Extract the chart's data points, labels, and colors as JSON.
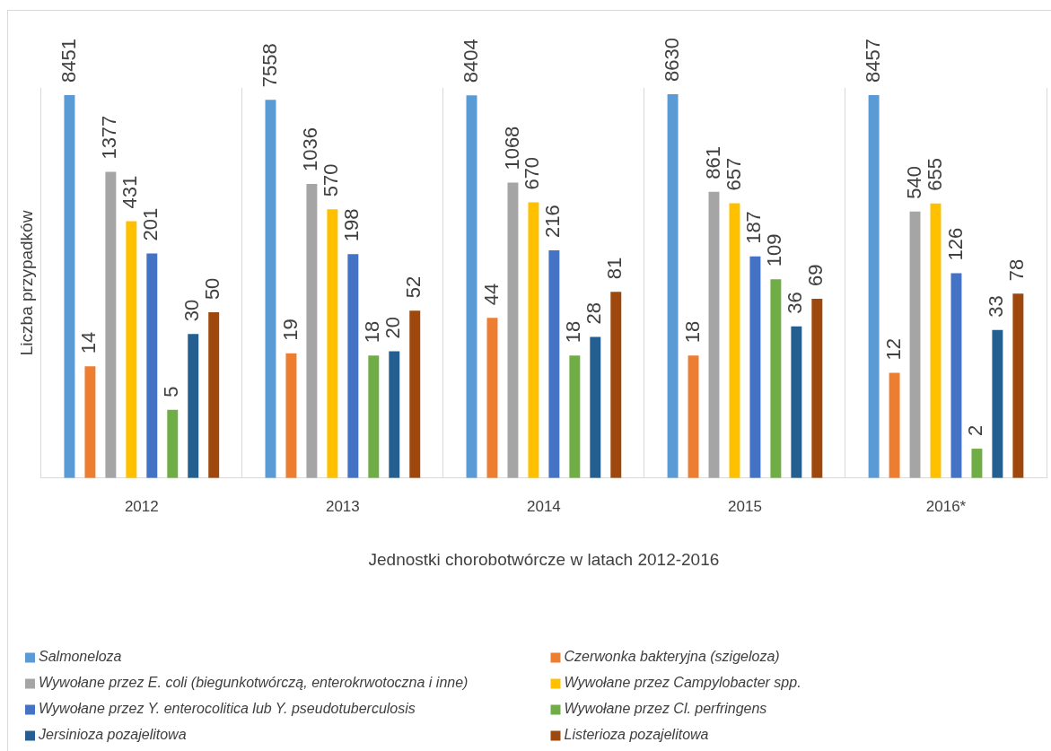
{
  "chart_data": {
    "type": "bar",
    "xlabel": "Jednostki chorobotwórcze w latach 2012-2016",
    "ylabel": "Liczba przypadków",
    "categories": [
      "2012",
      "2013",
      "2014",
      "2015",
      "2016*"
    ],
    "series": [
      {
        "name": "Salmoneloza",
        "color": "#5b9bd5",
        "values": [
          8451,
          7558,
          8404,
          8630,
          8457
        ]
      },
      {
        "name": "Czerwonka bakteryjna (szigeloza)",
        "color": "#ed7d31",
        "values": [
          14,
          19,
          44,
          18,
          12
        ]
      },
      {
        "name": "Wywołane przez E. coli (biegunkotwórczą, enterokrwotoczna i inne)",
        "color": "#a5a5a5",
        "values": [
          1377,
          1036,
          1068,
          861,
          540
        ]
      },
      {
        "name": "Wywołane przez Campylobacter spp.",
        "color": "#ffc000",
        "values": [
          431,
          570,
          670,
          657,
          655
        ]
      },
      {
        "name": "Wywołane przez Y. enterocolitica lub Y. pseudotuberculosis",
        "color": "#4472c4",
        "values": [
          201,
          198,
          216,
          187,
          126
        ]
      },
      {
        "name": "Wywołane przez Cl. perfringens",
        "color": "#70ad47",
        "values": [
          5,
          18,
          18,
          109,
          2
        ]
      },
      {
        "name": "Jersinioza pozajelitowa",
        "color": "#255e91",
        "values": [
          30,
          20,
          28,
          36,
          33
        ]
      },
      {
        "name": "Listerioza pozajelitowa",
        "color": "#9e480e",
        "values": [
          50,
          52,
          81,
          69,
          78
        ]
      }
    ],
    "ylim": [
      1,
      10000
    ],
    "log": true,
    "grid": "x",
    "legend": "bottom",
    "data_labels": true,
    "tick_labels": "x"
  }
}
